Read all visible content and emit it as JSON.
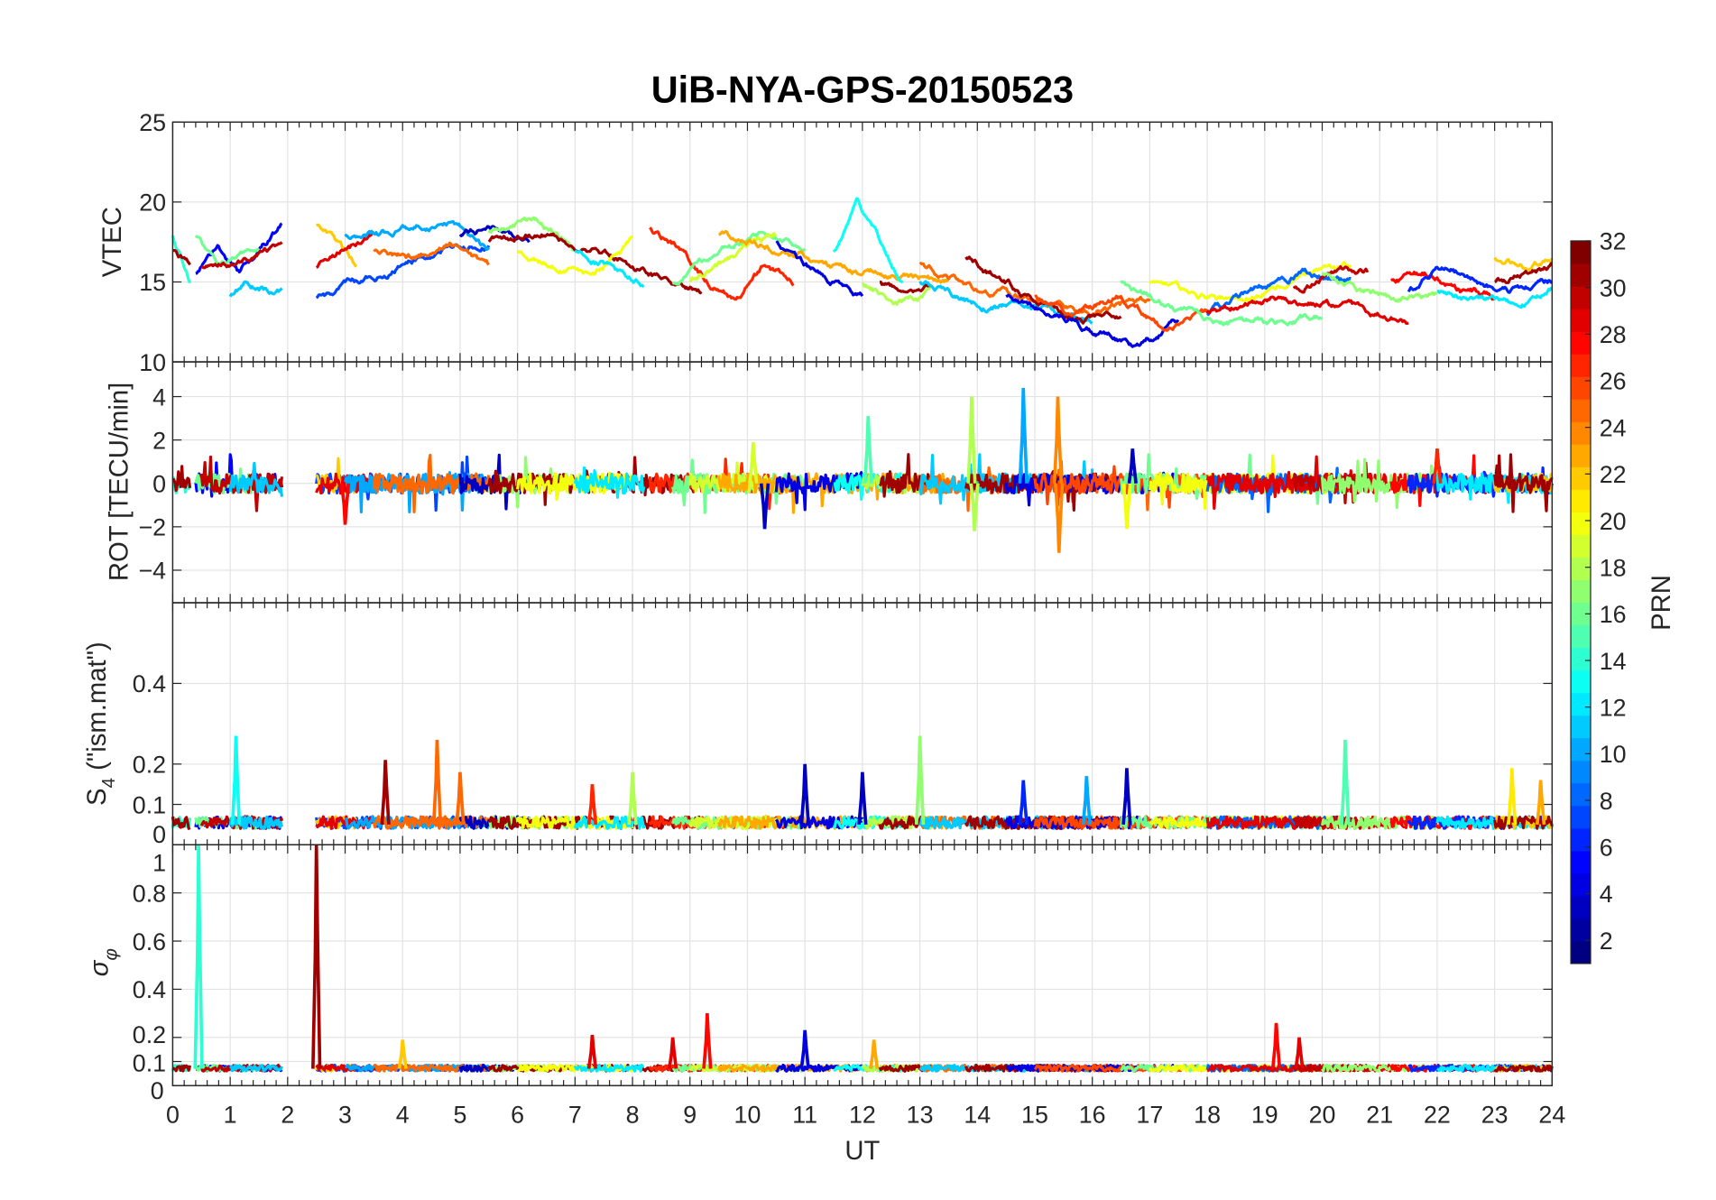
{
  "chart_data": {
    "type": "line",
    "title": "UiB-NYA-GPS-20150523",
    "xlabel": "UT",
    "xlim": [
      0,
      24
    ],
    "xticks": [
      "0",
      "1",
      "2",
      "3",
      "4",
      "5",
      "6",
      "7",
      "8",
      "9",
      "10",
      "11",
      "12",
      "13",
      "14",
      "15",
      "16",
      "17",
      "18",
      "19",
      "20",
      "21",
      "22",
      "23",
      "24"
    ],
    "grid": true,
    "colorbar": {
      "label": "PRN",
      "colormap": "jet",
      "range": [
        1,
        32
      ],
      "ticks": [
        "2",
        "4",
        "6",
        "8",
        "10",
        "12",
        "14",
        "16",
        "18",
        "20",
        "22",
        "24",
        "26",
        "28",
        "30",
        "32"
      ],
      "position": "right"
    },
    "panels": [
      {
        "id": "vtec",
        "ylabel": "VTEC",
        "ylim": [
          10,
          25
        ],
        "yticks": [
          "10",
          "15",
          "20",
          "25"
        ]
      },
      {
        "id": "rot",
        "ylabel": "ROT [TECU/min]",
        "ylim": [
          -5.5,
          5.6
        ],
        "yticks": [
          "-4",
          "-2",
          "0",
          "2",
          "4"
        ]
      },
      {
        "id": "s4",
        "ylabel_main": "S",
        "ylabel_sub": "4",
        "ylabel_rest": " (\"ism.mat\")",
        "ylim": [
          0,
          0.6
        ],
        "yticks": [
          "0",
          "0.1",
          "0.2",
          "0.4"
        ]
      },
      {
        "id": "sigma",
        "ylabel_main": "σ",
        "ylabel_sub": "φ",
        "ylim": [
          0,
          1
        ],
        "yticks": [
          "0",
          "0.1",
          "0.2",
          "0.4",
          "0.6",
          "0.8",
          "1"
        ]
      }
    ],
    "passes": [
      {
        "prn": 14,
        "t": [
          0,
          0.3
        ],
        "vtec": [
          18,
          15
        ]
      },
      {
        "prn": 31,
        "t": [
          0,
          0.3
        ],
        "vtec": [
          17,
          16
        ]
      },
      {
        "prn": 5,
        "t": [
          0.4,
          1.9
        ],
        "vtec": [
          15.5,
          17.5,
          15.5,
          17,
          18.5
        ]
      },
      {
        "prn": 16,
        "t": [
          0.4,
          1.5
        ],
        "vtec": [
          18,
          16,
          17,
          17
        ]
      },
      {
        "prn": 30,
        "t": [
          0.5,
          1.9
        ],
        "vtec": [
          16,
          16,
          16.5,
          17
        ]
      },
      {
        "prn": 11,
        "t": [
          1.0,
          1.9
        ],
        "vtec": [
          14,
          15,
          14.5,
          14.5
        ]
      },
      {
        "prn": 7,
        "t": [
          2.5,
          5.5
        ],
        "vtec": [
          14,
          15,
          16,
          17,
          17.5
        ]
      },
      {
        "prn": 22,
        "t": [
          2.5,
          3.2
        ],
        "vtec": [
          18.5,
          17.5,
          16
        ]
      },
      {
        "prn": 29,
        "t": [
          2.5,
          3.5
        ],
        "vtec": [
          16,
          17,
          18
        ]
      },
      {
        "prn": 10,
        "t": [
          3.0,
          5.5
        ],
        "vtec": [
          18,
          18,
          18.5,
          18.5,
          17
        ]
      },
      {
        "prn": 25,
        "t": [
          3.5,
          5.5
        ],
        "vtec": [
          17,
          16.5,
          17.5,
          16
        ]
      },
      {
        "prn": 3,
        "t": [
          5.0,
          6.2
        ],
        "vtec": [
          18,
          18.5,
          17.5
        ]
      },
      {
        "prn": 17,
        "t": [
          5.5,
          7
        ],
        "vtec": [
          18,
          19,
          17
        ]
      },
      {
        "prn": 31,
        "t": [
          5.5,
          9.2
        ],
        "vtec": [
          17.5,
          18,
          17,
          15.5,
          14.5
        ]
      },
      {
        "prn": 20,
        "t": [
          6.0,
          8
        ],
        "vtec": [
          17,
          16,
          15.5,
          17.5
        ]
      },
      {
        "prn": 12,
        "t": [
          7,
          8.2
        ],
        "vtec": [
          17,
          16,
          15
        ]
      },
      {
        "prn": 27,
        "t": [
          8.3,
          10.8
        ],
        "vtec": [
          18.5,
          17,
          15,
          14,
          16,
          15
        ]
      },
      {
        "prn": 16,
        "t": [
          8.7,
          11
        ],
        "vtec": [
          15,
          17,
          18,
          17
        ]
      },
      {
        "prn": 19,
        "t": [
          9,
          10.5
        ],
        "vtec": [
          15,
          16,
          17,
          18
        ]
      },
      {
        "prn": 23,
        "t": [
          9.5,
          13.5
        ],
        "vtec": [
          18,
          17,
          16,
          15.5,
          15
        ]
      },
      {
        "prn": 4,
        "t": [
          10.5,
          12.0
        ],
        "vtec": [
          17.5,
          15.5,
          14
        ]
      },
      {
        "prn": 13,
        "t": [
          11.5,
          12.7
        ],
        "vtec": [
          17,
          20,
          17.5,
          15
        ]
      },
      {
        "prn": 18,
        "t": [
          12,
          13.2
        ],
        "vtec": [
          15,
          13.5,
          14.5
        ]
      },
      {
        "prn": 31,
        "t": [
          12.3,
          13.2
        ],
        "vtec": [
          15,
          14,
          14.5
        ]
      },
      {
        "prn": 25,
        "t": [
          13,
          17
        ],
        "vtec": [
          16,
          14.5,
          14,
          13,
          14
        ]
      },
      {
        "prn": 11,
        "t": [
          13,
          16
        ],
        "vtec": [
          15,
          13.5,
          13.5,
          12.5
        ]
      },
      {
        "prn": 31,
        "t": [
          13.8,
          16.5
        ],
        "vtec": [
          16.5,
          15,
          13.5,
          12.5,
          13
        ]
      },
      {
        "prn": 4,
        "t": [
          14.5,
          17.5
        ],
        "vtec": [
          14,
          13,
          12,
          11,
          12.5
        ]
      },
      {
        "prn": 26,
        "t": [
          15,
          18
        ],
        "vtec": [
          14,
          13,
          14,
          12,
          13
        ]
      },
      {
        "prn": 16,
        "t": [
          16.5,
          20
        ],
        "vtec": [
          15,
          13.5,
          12.5,
          12.5,
          13
        ]
      },
      {
        "prn": 20,
        "t": [
          17,
          20.5
        ],
        "vtec": [
          15,
          14,
          14,
          15.5,
          16
        ]
      },
      {
        "prn": 8,
        "t": [
          18,
          20.5
        ],
        "vtec": [
          13,
          14.5,
          15.5,
          15
        ]
      },
      {
        "prn": 29,
        "t": [
          18,
          21.5
        ],
        "vtec": [
          13,
          14,
          13.5,
          12.5
        ]
      },
      {
        "prn": 30,
        "t": [
          19.5,
          20.8
        ],
        "vtec": [
          14.5,
          15.5,
          15.5
        ]
      },
      {
        "prn": 17,
        "t": [
          20,
          22
        ],
        "vtec": [
          15.5,
          14.5,
          14,
          14
        ]
      },
      {
        "prn": 28,
        "t": [
          21.2,
          23
        ],
        "vtec": [
          15,
          15.5,
          14.5,
          14
        ]
      },
      {
        "prn": 6,
        "t": [
          21.5,
          24
        ],
        "vtec": [
          14.5,
          16,
          15,
          14.5,
          15
        ]
      },
      {
        "prn": 12,
        "t": [
          22,
          24
        ],
        "vtec": [
          14.5,
          14,
          13.5,
          14.5
        ]
      },
      {
        "prn": 22,
        "t": [
          23,
          24
        ],
        "vtec": [
          16.5,
          16,
          16.5
        ]
      },
      {
        "prn": 31,
        "t": [
          23,
          24
        ],
        "vtec": [
          15,
          15.5,
          16
        ]
      }
    ],
    "rot_spikes": [
      [
        15,
        12.1,
        3.1
      ],
      [
        18,
        13.9,
        4.0
      ],
      [
        18,
        13.95,
        -2.2
      ],
      [
        10,
        14.8,
        4.4
      ],
      [
        24,
        15.4,
        4.0
      ],
      [
        24,
        15.42,
        -3.2
      ],
      [
        3,
        10.3,
        -2.1
      ],
      [
        28,
        3.0,
        -1.9
      ],
      [
        27,
        22.0,
        1.6
      ],
      [
        20,
        16.6,
        -2.1
      ],
      [
        3,
        16.7,
        1.6
      ],
      [
        19,
        10.1,
        1.9
      ]
    ],
    "s4_spikes": [
      [
        13,
        1.1,
        0.27
      ],
      [
        31,
        3.7,
        0.21
      ],
      [
        25,
        4.6,
        0.26
      ],
      [
        25,
        5.0,
        0.18
      ],
      [
        27,
        7.3,
        0.15
      ],
      [
        18,
        8.0,
        0.18
      ],
      [
        3,
        11.0,
        0.2
      ],
      [
        3,
        12.0,
        0.18
      ],
      [
        17,
        13.0,
        0.27
      ],
      [
        6,
        14.8,
        0.16
      ],
      [
        10,
        15.9,
        0.17
      ],
      [
        3,
        16.6,
        0.19
      ],
      [
        15,
        20.4,
        0.26
      ],
      [
        21,
        23.3,
        0.19
      ],
      [
        23,
        23.8,
        0.16
      ]
    ],
    "sigma_spikes": [
      [
        14,
        0.45,
        1.0
      ],
      [
        31,
        2.5,
        1.0
      ],
      [
        22,
        4.0,
        0.19
      ],
      [
        29,
        7.3,
        0.21
      ],
      [
        29,
        8.7,
        0.2
      ],
      [
        28,
        9.3,
        0.3
      ],
      [
        4,
        11.0,
        0.23
      ],
      [
        23,
        12.2,
        0.19
      ],
      [
        28,
        19.2,
        0.26
      ],
      [
        29,
        19.6,
        0.2
      ]
    ]
  }
}
